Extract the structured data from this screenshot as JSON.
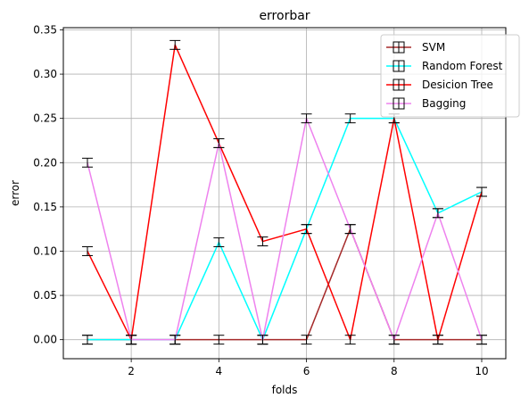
{
  "chart_data": {
    "type": "line",
    "title": "errorbar",
    "xlabel": "folds",
    "ylabel": "error",
    "xlim": [
      0.45,
      10.55
    ],
    "ylim": [
      -0.0215,
      0.3525
    ],
    "xticks": [
      2,
      4,
      6,
      8,
      10
    ],
    "xtick_labels": [
      "2",
      "4",
      "6",
      "8",
      "10"
    ],
    "yticks": [
      0.0,
      0.05,
      0.1,
      0.15,
      0.2,
      0.25,
      0.3,
      0.35
    ],
    "ytick_labels": [
      "0.00",
      "0.05",
      "0.10",
      "0.15",
      "0.20",
      "0.25",
      "0.30",
      "0.35"
    ],
    "grid": true,
    "legend_position": "top-right",
    "x": [
      1,
      2,
      3,
      4,
      5,
      6,
      7,
      8,
      9,
      10
    ],
    "error_bar_halfwidth": 0.005,
    "series": [
      {
        "name": "SVM",
        "color": "#a52a2a",
        "values": [
          0,
          0,
          0,
          0,
          0,
          0,
          0.125,
          0,
          0,
          0
        ]
      },
      {
        "name": "Random Forest",
        "color": "#00ffff",
        "values": [
          0,
          0,
          0,
          0.11,
          0,
          0.125,
          0.25,
          0.25,
          0.143,
          0.167
        ]
      },
      {
        "name": "Desicion Tree",
        "color": "#ff0000",
        "values": [
          0.1,
          0,
          0.333,
          0.222,
          0.111,
          0.125,
          0,
          0.25,
          0,
          0.167
        ]
      },
      {
        "name": "Bagging",
        "color": "#ee82ee",
        "values": [
          0.2,
          0,
          0,
          0.222,
          0,
          0.25,
          0.125,
          0,
          0.143,
          0
        ]
      }
    ]
  }
}
